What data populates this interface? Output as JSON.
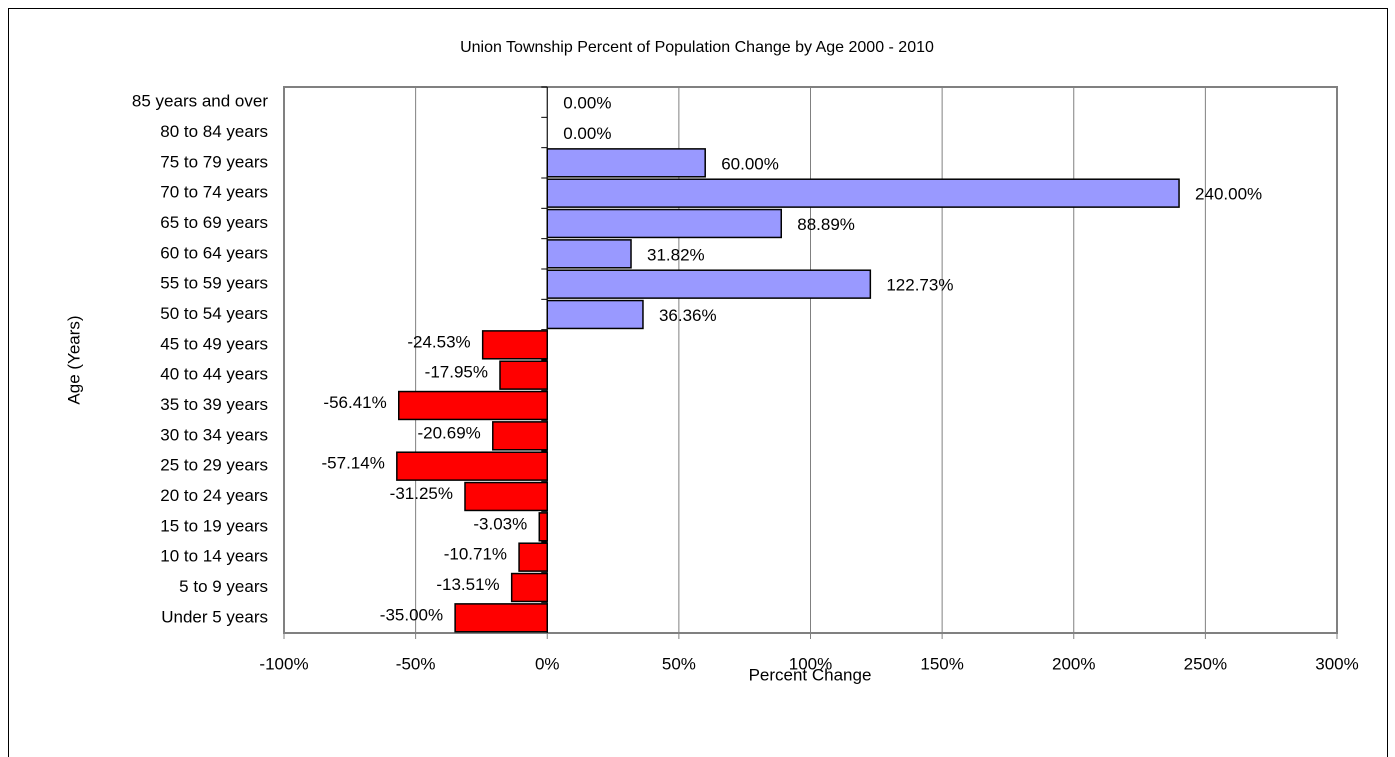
{
  "chart_data": {
    "type": "hbar",
    "title": "Union Township Percent of Population Change by Age 2000 - 2010",
    "x_label": "Percent Change",
    "y_label": "Age (Years)",
    "categories": [
      "85 years and over",
      "80 to 84 years",
      "75 to 79 years",
      "70 to 74 years",
      "65 to 69 years",
      "60 to 64 years",
      "55 to 59 years",
      "50 to 54 years",
      "45 to 49 years",
      "40 to 44 years",
      "35 to 39 years",
      "30 to 34 years",
      "25 to 29 years",
      "20 to 24 years",
      "15 to 19 years",
      "10 to 14 years",
      "5 to 9 years",
      "Under 5 years"
    ],
    "values": [
      0,
      0,
      60,
      240,
      88.89,
      31.82,
      122.73,
      36.36,
      -24.53,
      -17.95,
      -56.41,
      -20.69,
      -57.14,
      -31.25,
      -3.03,
      -10.71,
      -13.51,
      -35
    ],
    "value_labels": [
      "0.00%",
      "0.00%",
      "60.00%",
      "240.00%",
      "88.89%",
      "31.82%",
      "122.73%",
      "36.36%",
      "-24.53%",
      "-17.95%",
      "-56.41%",
      "-20.69%",
      "-57.14%",
      "-31.25%",
      "-3.03%",
      "-10.71%",
      "-13.51%",
      "-35.00%"
    ],
    "positive_color": "#9999ff",
    "negative_color": "#ff0000",
    "xlim": [
      -100,
      300
    ],
    "xticks": [
      {
        "value": -100,
        "label": "-100%"
      },
      {
        "value": -50,
        "label": "-50%"
      },
      {
        "value": 0,
        "label": "0%"
      },
      {
        "value": 50,
        "label": "50%"
      },
      {
        "value": 100,
        "label": "100%"
      },
      {
        "value": 150,
        "label": "150%"
      },
      {
        "value": 200,
        "label": "200%"
      },
      {
        "value": 250,
        "label": "250%"
      },
      {
        "value": 300,
        "label": "300%"
      }
    ],
    "grid": true
  }
}
